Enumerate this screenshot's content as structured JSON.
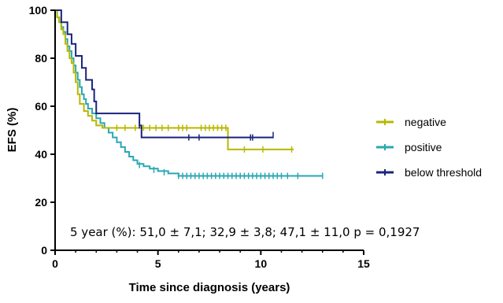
{
  "chart_data": {
    "type": "line",
    "xlabel": "Time since diagnosis (years)",
    "ylabel": "EFS (%)",
    "xlim": [
      0,
      15
    ],
    "ylim": [
      0,
      100
    ],
    "xticks": [
      0,
      5,
      10,
      15
    ],
    "xtick_labels": [
      "0",
      "5",
      "10",
      "15"
    ],
    "yticks": [
      0,
      20,
      40,
      60,
      80,
      100
    ],
    "ytick_labels": [
      "0",
      "20",
      "40",
      "60",
      "80",
      "100"
    ],
    "grid": false,
    "legend_position": "right",
    "annotation": "5 year (%): 51,0 ± 7,1; 32,9 ± 3,8; 47,1 ± 11,0 p = 0,1927",
    "series": [
      {
        "name": "negative",
        "color": "#b8b800",
        "step": [
          [
            0,
            100
          ],
          [
            0.1,
            97
          ],
          [
            0.2,
            95
          ],
          [
            0.3,
            92
          ],
          [
            0.4,
            90
          ],
          [
            0.5,
            86
          ],
          [
            0.6,
            83
          ],
          [
            0.7,
            80
          ],
          [
            0.8,
            78
          ],
          [
            0.9,
            74
          ],
          [
            1.0,
            70
          ],
          [
            1.1,
            65
          ],
          [
            1.2,
            61
          ],
          [
            1.4,
            58
          ],
          [
            1.6,
            56
          ],
          [
            1.8,
            54
          ],
          [
            2.0,
            52
          ],
          [
            2.3,
            51
          ],
          [
            8.4,
            51
          ],
          [
            8.4,
            42
          ],
          [
            11.6,
            42
          ]
        ],
        "censored": [
          [
            3.0,
            51
          ],
          [
            3.4,
            51
          ],
          [
            3.9,
            51
          ],
          [
            4.3,
            51
          ],
          [
            4.6,
            51
          ],
          [
            4.9,
            51
          ],
          [
            5.2,
            51
          ],
          [
            5.5,
            51
          ],
          [
            6.0,
            51
          ],
          [
            6.2,
            51
          ],
          [
            6.4,
            51
          ],
          [
            7.1,
            51
          ],
          [
            7.3,
            51
          ],
          [
            7.5,
            51
          ],
          [
            7.7,
            51
          ],
          [
            7.9,
            51
          ],
          [
            8.1,
            51
          ],
          [
            8.3,
            51
          ],
          [
            9.2,
            42
          ],
          [
            10.1,
            42
          ],
          [
            11.5,
            42
          ]
        ]
      },
      {
        "name": "positive",
        "color": "#2aa7b5",
        "step": [
          [
            0,
            100
          ],
          [
            0.1,
            97
          ],
          [
            0.2,
            95
          ],
          [
            0.3,
            93
          ],
          [
            0.4,
            91
          ],
          [
            0.5,
            88
          ],
          [
            0.6,
            85
          ],
          [
            0.7,
            83
          ],
          [
            0.8,
            80
          ],
          [
            0.9,
            77
          ],
          [
            1.0,
            74
          ],
          [
            1.1,
            71
          ],
          [
            1.2,
            68
          ],
          [
            1.3,
            65
          ],
          [
            1.4,
            63
          ],
          [
            1.5,
            61
          ],
          [
            1.6,
            59
          ],
          [
            1.8,
            57
          ],
          [
            2.0,
            55
          ],
          [
            2.2,
            53
          ],
          [
            2.4,
            51
          ],
          [
            2.6,
            49
          ],
          [
            2.8,
            47
          ],
          [
            3.0,
            45
          ],
          [
            3.2,
            43
          ],
          [
            3.4,
            41
          ],
          [
            3.6,
            39
          ],
          [
            3.8,
            37.5
          ],
          [
            4.0,
            36
          ],
          [
            4.3,
            35
          ],
          [
            4.6,
            34
          ],
          [
            5.0,
            33
          ],
          [
            5.5,
            32
          ],
          [
            6.0,
            31
          ],
          [
            13.0,
            31
          ]
        ],
        "censored": [
          [
            4.1,
            35.5
          ],
          [
            4.8,
            33.5
          ],
          [
            5.3,
            32.5
          ],
          [
            6.0,
            31
          ],
          [
            6.2,
            31
          ],
          [
            6.4,
            31
          ],
          [
            6.6,
            31
          ],
          [
            6.8,
            31
          ],
          [
            7.0,
            31
          ],
          [
            7.2,
            31
          ],
          [
            7.4,
            31
          ],
          [
            7.6,
            31
          ],
          [
            7.8,
            31
          ],
          [
            8.0,
            31
          ],
          [
            8.2,
            31
          ],
          [
            8.4,
            31
          ],
          [
            8.6,
            31
          ],
          [
            8.8,
            31
          ],
          [
            9.0,
            31
          ],
          [
            9.2,
            31
          ],
          [
            9.4,
            31
          ],
          [
            9.6,
            31
          ],
          [
            9.8,
            31
          ],
          [
            10.0,
            31
          ],
          [
            10.2,
            31
          ],
          [
            10.4,
            31
          ],
          [
            10.6,
            31
          ],
          [
            10.8,
            31
          ],
          [
            11.0,
            31
          ],
          [
            11.3,
            31
          ],
          [
            11.8,
            31
          ],
          [
            13.0,
            31
          ]
        ]
      },
      {
        "name": "below threshold",
        "color": "#1a237e",
        "step": [
          [
            0,
            100
          ],
          [
            0.3,
            95
          ],
          [
            0.6,
            90
          ],
          [
            0.8,
            86
          ],
          [
            1.0,
            81
          ],
          [
            1.3,
            76
          ],
          [
            1.5,
            71
          ],
          [
            1.8,
            67
          ],
          [
            1.9,
            62
          ],
          [
            2.0,
            57
          ],
          [
            4.0,
            57
          ],
          [
            4.1,
            52
          ],
          [
            4.2,
            47
          ],
          [
            10.6,
            47
          ]
        ],
        "censored": [
          [
            4.1,
            52
          ],
          [
            6.5,
            47
          ],
          [
            7.0,
            47
          ],
          [
            9.5,
            47
          ],
          [
            9.6,
            47
          ],
          [
            10.6,
            48
          ]
        ]
      }
    ]
  }
}
